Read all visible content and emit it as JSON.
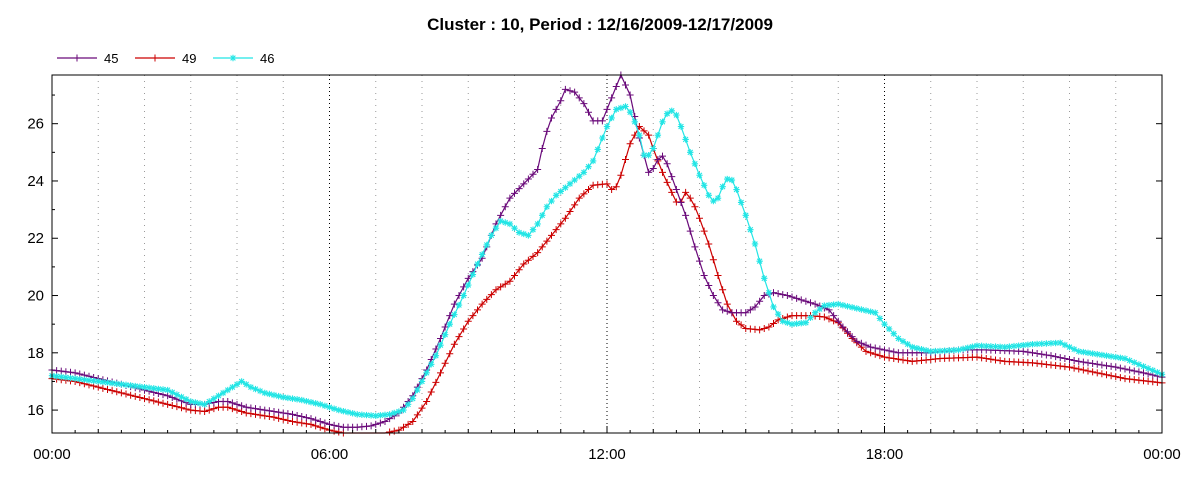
{
  "chart_data": {
    "type": "line",
    "title": "Cluster : 10, Period : 12/16/2009-12/17/2009",
    "xlabel": "",
    "ylabel": "",
    "x_unit": "hours",
    "xlim": [
      0,
      24
    ],
    "ylim": [
      15.2,
      27.7
    ],
    "x_ticks": [
      {
        "value": 0,
        "label": "00:00"
      },
      {
        "value": 6,
        "label": "06:00"
      },
      {
        "value": 12,
        "label": "12:00"
      },
      {
        "value": 18,
        "label": "18:00"
      },
      {
        "value": 24,
        "label": "00:00"
      }
    ],
    "y_ticks": [
      16,
      18,
      20,
      22,
      24,
      26
    ],
    "grid": true,
    "legend_position": "top-left",
    "marker_interval_hours": 0.1,
    "series": [
      {
        "name": "45",
        "color": "#6a0a7a",
        "marker": "plus",
        "points": [
          [
            0,
            17.4
          ],
          [
            0.5,
            17.3
          ],
          [
            1,
            17.1
          ],
          [
            1.5,
            16.9
          ],
          [
            2,
            16.7
          ],
          [
            2.5,
            16.5
          ],
          [
            3,
            16.2
          ],
          [
            3.3,
            16.2
          ],
          [
            3.6,
            16.3
          ],
          [
            3.8,
            16.3
          ],
          [
            4.2,
            16.1
          ],
          [
            4.8,
            15.95
          ],
          [
            5.2,
            15.85
          ],
          [
            5.6,
            15.7
          ],
          [
            6,
            15.5
          ],
          [
            6.3,
            15.4
          ],
          [
            6.6,
            15.4
          ],
          [
            6.9,
            15.45
          ],
          [
            7.2,
            15.6
          ],
          [
            7.5,
            15.9
          ],
          [
            7.8,
            16.5
          ],
          [
            8.1,
            17.4
          ],
          [
            8.4,
            18.5
          ],
          [
            8.7,
            19.7
          ],
          [
            9,
            20.6
          ],
          [
            9.3,
            21.3
          ],
          [
            9.6,
            22.5
          ],
          [
            9.9,
            23.4
          ],
          [
            10.2,
            23.9
          ],
          [
            10.5,
            24.4
          ],
          [
            10.65,
            25.5
          ],
          [
            10.8,
            26.2
          ],
          [
            11,
            26.8
          ],
          [
            11.1,
            27.2
          ],
          [
            11.3,
            27.1
          ],
          [
            11.5,
            26.7
          ],
          [
            11.7,
            26.1
          ],
          [
            11.9,
            26.1
          ],
          [
            12.1,
            26.9
          ],
          [
            12.3,
            27.7
          ],
          [
            12.5,
            27.0
          ],
          [
            12.7,
            25.5
          ],
          [
            12.9,
            24.3
          ],
          [
            13.05,
            24.5
          ],
          [
            13.15,
            25.0
          ],
          [
            13.3,
            24.6
          ],
          [
            13.5,
            23.7
          ],
          [
            13.7,
            22.8
          ],
          [
            13.9,
            21.7
          ],
          [
            14.1,
            20.7
          ],
          [
            14.3,
            20.0
          ],
          [
            14.5,
            19.5
          ],
          [
            14.7,
            19.4
          ],
          [
            15,
            19.4
          ],
          [
            15.2,
            19.6
          ],
          [
            15.4,
            20.0
          ],
          [
            15.6,
            20.1
          ],
          [
            15.9,
            20.0
          ],
          [
            16.2,
            19.85
          ],
          [
            16.5,
            19.7
          ],
          [
            16.8,
            19.5
          ],
          [
            17.1,
            18.9
          ],
          [
            17.4,
            18.4
          ],
          [
            17.7,
            18.2
          ],
          [
            18.3,
            18.0
          ],
          [
            19,
            18.0
          ],
          [
            19.6,
            18.1
          ],
          [
            20.2,
            18.1
          ],
          [
            21,
            18.05
          ],
          [
            21.6,
            17.9
          ],
          [
            22.2,
            17.7
          ],
          [
            23,
            17.5
          ],
          [
            23.6,
            17.3
          ],
          [
            24,
            17.15
          ]
        ]
      },
      {
        "name": "49",
        "color": "#cc0000",
        "marker": "plus",
        "points": [
          [
            0,
            17.1
          ],
          [
            0.5,
            17.0
          ],
          [
            1,
            16.8
          ],
          [
            1.5,
            16.6
          ],
          [
            2,
            16.4
          ],
          [
            2.5,
            16.2
          ],
          [
            3,
            16.0
          ],
          [
            3.3,
            15.95
          ],
          [
            3.6,
            16.1
          ],
          [
            3.8,
            16.1
          ],
          [
            4.2,
            15.9
          ],
          [
            4.8,
            15.75
          ],
          [
            5.2,
            15.6
          ],
          [
            5.6,
            15.5
          ],
          [
            6,
            15.3
          ],
          [
            6.3,
            15.2
          ],
          [
            6.6,
            15.15
          ],
          [
            6.9,
            15.1
          ],
          [
            7.2,
            15.2
          ],
          [
            7.5,
            15.3
          ],
          [
            7.8,
            15.6
          ],
          [
            8.1,
            16.3
          ],
          [
            8.4,
            17.3
          ],
          [
            8.7,
            18.3
          ],
          [
            9,
            19.1
          ],
          [
            9.3,
            19.7
          ],
          [
            9.6,
            20.2
          ],
          [
            9.9,
            20.5
          ],
          [
            10.2,
            21.1
          ],
          [
            10.5,
            21.5
          ],
          [
            10.8,
            22.1
          ],
          [
            11.1,
            22.7
          ],
          [
            11.4,
            23.4
          ],
          [
            11.7,
            23.85
          ],
          [
            12,
            23.9
          ],
          [
            12.15,
            23.6
          ],
          [
            12.3,
            24.2
          ],
          [
            12.5,
            25.3
          ],
          [
            12.7,
            25.9
          ],
          [
            12.9,
            25.6
          ],
          [
            13.05,
            24.9
          ],
          [
            13.2,
            24.3
          ],
          [
            13.4,
            23.6
          ],
          [
            13.55,
            23.1
          ],
          [
            13.7,
            23.6
          ],
          [
            13.85,
            23.3
          ],
          [
            14,
            22.7
          ],
          [
            14.2,
            21.8
          ],
          [
            14.4,
            20.7
          ],
          [
            14.6,
            19.7
          ],
          [
            14.8,
            19.1
          ],
          [
            15,
            18.85
          ],
          [
            15.3,
            18.8
          ],
          [
            15.5,
            18.9
          ],
          [
            15.7,
            19.15
          ],
          [
            16,
            19.3
          ],
          [
            16.4,
            19.3
          ],
          [
            16.7,
            19.25
          ],
          [
            17,
            19.05
          ],
          [
            17.3,
            18.5
          ],
          [
            17.6,
            18.05
          ],
          [
            18,
            17.85
          ],
          [
            18.6,
            17.7
          ],
          [
            19.2,
            17.8
          ],
          [
            20,
            17.85
          ],
          [
            20.6,
            17.7
          ],
          [
            21.2,
            17.65
          ],
          [
            22,
            17.5
          ],
          [
            22.6,
            17.3
          ],
          [
            23.2,
            17.1
          ],
          [
            24,
            16.95
          ]
        ]
      },
      {
        "name": "46",
        "color": "#22e5e5",
        "marker": "star",
        "points": [
          [
            0,
            17.2
          ],
          [
            0.5,
            17.1
          ],
          [
            1,
            17.0
          ],
          [
            1.5,
            16.9
          ],
          [
            2,
            16.8
          ],
          [
            2.5,
            16.7
          ],
          [
            3,
            16.3
          ],
          [
            3.3,
            16.2
          ],
          [
            3.6,
            16.5
          ],
          [
            3.9,
            16.8
          ],
          [
            4.1,
            17.0
          ],
          [
            4.3,
            16.8
          ],
          [
            4.6,
            16.6
          ],
          [
            5,
            16.45
          ],
          [
            5.4,
            16.35
          ],
          [
            5.8,
            16.2
          ],
          [
            6.2,
            16.0
          ],
          [
            6.6,
            15.85
          ],
          [
            7,
            15.8
          ],
          [
            7.3,
            15.85
          ],
          [
            7.6,
            16.0
          ],
          [
            7.8,
            16.4
          ],
          [
            8,
            17.0
          ],
          [
            8.3,
            17.9
          ],
          [
            8.6,
            19.0
          ],
          [
            8.9,
            20.0
          ],
          [
            9.2,
            21.1
          ],
          [
            9.5,
            22.1
          ],
          [
            9.7,
            22.6
          ],
          [
            9.9,
            22.5
          ],
          [
            10.1,
            22.2
          ],
          [
            10.3,
            22.1
          ],
          [
            10.5,
            22.5
          ],
          [
            10.7,
            23.1
          ],
          [
            10.9,
            23.5
          ],
          [
            11.2,
            23.9
          ],
          [
            11.5,
            24.3
          ],
          [
            11.7,
            24.7
          ],
          [
            11.85,
            25.3
          ],
          [
            12,
            25.9
          ],
          [
            12.2,
            26.5
          ],
          [
            12.4,
            26.6
          ],
          [
            12.55,
            26.3
          ],
          [
            12.7,
            25.6
          ],
          [
            12.8,
            24.9
          ],
          [
            12.95,
            24.9
          ],
          [
            13.1,
            25.6
          ],
          [
            13.25,
            26.3
          ],
          [
            13.45,
            26.5
          ],
          [
            13.6,
            25.9
          ],
          [
            13.8,
            25.0
          ],
          [
            14,
            24.2
          ],
          [
            14.2,
            23.5
          ],
          [
            14.35,
            23.2
          ],
          [
            14.5,
            23.8
          ],
          [
            14.65,
            24.2
          ],
          [
            14.8,
            23.7
          ],
          [
            15,
            22.8
          ],
          [
            15.2,
            21.8
          ],
          [
            15.4,
            20.6
          ],
          [
            15.6,
            19.6
          ],
          [
            15.8,
            19.1
          ],
          [
            16,
            19.0
          ],
          [
            16.3,
            19.05
          ],
          [
            16.5,
            19.4
          ],
          [
            16.7,
            19.65
          ],
          [
            17,
            19.7
          ],
          [
            17.4,
            19.55
          ],
          [
            17.8,
            19.4
          ],
          [
            18,
            19.0
          ],
          [
            18.3,
            18.5
          ],
          [
            18.6,
            18.2
          ],
          [
            19,
            18.05
          ],
          [
            19.6,
            18.1
          ],
          [
            20,
            18.25
          ],
          [
            20.6,
            18.2
          ],
          [
            21.2,
            18.3
          ],
          [
            21.8,
            18.35
          ],
          [
            22.2,
            18.05
          ],
          [
            22.8,
            17.9
          ],
          [
            23.2,
            17.8
          ],
          [
            24,
            17.25
          ]
        ]
      }
    ]
  }
}
